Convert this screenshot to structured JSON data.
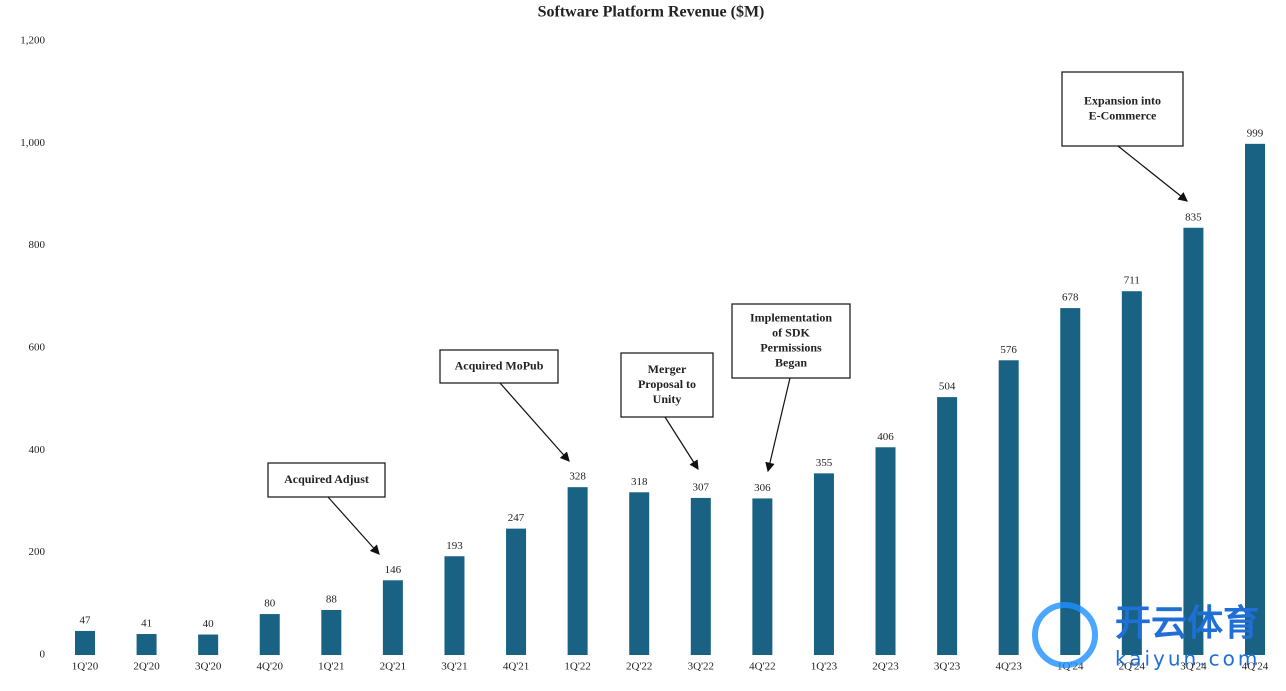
{
  "chart_data": {
    "type": "bar",
    "title": "Software Platform Revenue ($M)",
    "categories": [
      "1Q'20",
      "2Q'20",
      "3Q'20",
      "4Q'20",
      "1Q'21",
      "2Q'21",
      "3Q'21",
      "4Q'21",
      "1Q'22",
      "2Q'22",
      "3Q'22",
      "4Q'22",
      "1Q'23",
      "2Q'23",
      "3Q'23",
      "4Q'23",
      "1Q'24",
      "2Q'24",
      "3Q'24",
      "4Q'24"
    ],
    "values": [
      47,
      41,
      40,
      80,
      88,
      146,
      193,
      247,
      328,
      318,
      307,
      306,
      355,
      406,
      504,
      576,
      678,
      711,
      835,
      999
    ],
    "color": "#1a6283",
    "ylim": [
      0,
      1200
    ],
    "yticks": [
      0,
      200,
      400,
      600,
      800,
      {
        "value": 1000,
        "label": "1,000"
      },
      {
        "value": 1200,
        "label": "1,200"
      }
    ],
    "grid": false,
    "annotations": [
      {
        "lines": [
          "Acquired Adjust"
        ]
      },
      {
        "lines": [
          "Acquired MoPub"
        ]
      },
      {
        "lines": [
          "Merger",
          "Proposal to",
          "Unity"
        ]
      },
      {
        "lines": [
          "Implementation",
          "of SDK",
          "Permissions",
          "Began"
        ]
      },
      {
        "lines": [
          "Expansion into",
          "E-Commerce"
        ]
      }
    ],
    "watermark": {
      "text": "开云体育",
      "url": "kaiyun.com"
    }
  }
}
